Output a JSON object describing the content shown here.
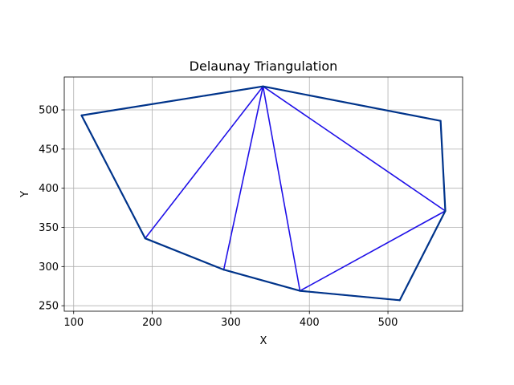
{
  "chart_data": {
    "type": "line",
    "title": "Delaunay Triangulation",
    "xlabel": "X",
    "ylabel": "Y",
    "xlim": [
      88,
      595
    ],
    "ylim": [
      243,
      542
    ],
    "xticks": [
      100,
      200,
      300,
      400,
      500
    ],
    "yticks": [
      250,
      300,
      350,
      400,
      450,
      500
    ],
    "grid": true,
    "points": [
      {
        "x": 110,
        "y": 493
      },
      {
        "x": 341,
        "y": 530
      },
      {
        "x": 567,
        "y": 486
      },
      {
        "x": 573,
        "y": 371
      },
      {
        "x": 515,
        "y": 257
      },
      {
        "x": 388,
        "y": 269
      },
      {
        "x": 291,
        "y": 296
      },
      {
        "x": 191,
        "y": 336
      }
    ],
    "series": [
      {
        "role": "triangulation-edges",
        "color": "#1f10e8",
        "edges": [
          [
            0,
            1
          ],
          [
            0,
            7
          ],
          [
            1,
            7
          ],
          [
            1,
            6
          ],
          [
            1,
            5
          ],
          [
            1,
            3
          ],
          [
            1,
            2
          ],
          [
            2,
            3
          ],
          [
            3,
            5
          ],
          [
            3,
            4
          ],
          [
            4,
            5
          ],
          [
            5,
            6
          ],
          [
            6,
            7
          ]
        ]
      },
      {
        "role": "convex-hull",
        "color": "#00348a",
        "edges": [
          [
            0,
            1
          ],
          [
            1,
            2
          ],
          [
            2,
            3
          ],
          [
            3,
            4
          ],
          [
            4,
            5
          ],
          [
            5,
            6
          ],
          [
            6,
            7
          ],
          [
            7,
            0
          ]
        ]
      }
    ]
  }
}
